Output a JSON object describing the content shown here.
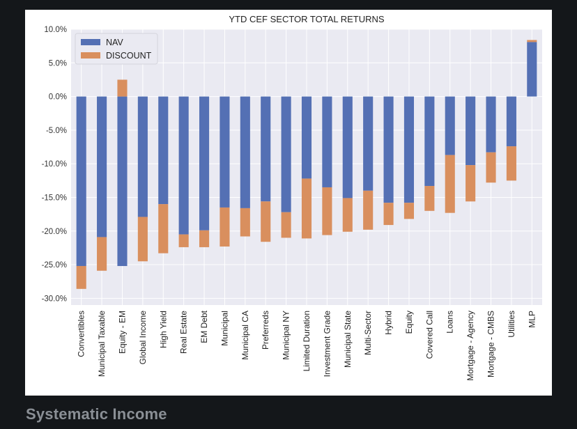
{
  "caption": "Systematic Income",
  "colors": {
    "nav": "#5470b4",
    "discount": "#d98f5e",
    "plot_bg": "#eaeaf2",
    "grid": "#ffffff"
  },
  "chart_data": {
    "type": "bar",
    "stacked": true,
    "title": "YTD CEF SECTOR TOTAL RETURNS",
    "xlabel": "",
    "ylabel": "",
    "ylim": [
      -31.0,
      10.0
    ],
    "yticks": [
      "10.0%",
      "5.0%",
      "0.0%",
      "-5.0%",
      "-10.0%",
      "-15.0%",
      "-20.0%",
      "-25.0%",
      "-30.0%"
    ],
    "ytick_values": [
      10,
      5,
      0,
      -5,
      -10,
      -15,
      -20,
      -25,
      -30
    ],
    "grid": true,
    "legend_position": "top-left",
    "categories": [
      "Convertibles",
      "Municipal Taxable",
      "Equity - EM",
      "Global Income",
      "High Yield",
      "Real Estate",
      "EM Debt",
      "Municipal",
      "Municipal CA",
      "Preferreds",
      "Municipal NY",
      "Limited Duration",
      "Investment Grade",
      "Municipal State",
      "Multi-Sector",
      "Hybrid",
      "Equity",
      "Covered Call",
      "Loans",
      "Mortgage - Agency",
      "Mortgage - CMBS",
      "Utilities",
      "MLP"
    ],
    "series": [
      {
        "name": "NAV",
        "values": [
          -25.2,
          -20.9,
          -25.2,
          -17.9,
          -16.0,
          -20.5,
          -19.9,
          -16.5,
          -16.6,
          -15.6,
          -17.2,
          -12.2,
          -13.5,
          -15.1,
          -14.0,
          -15.8,
          -15.8,
          -13.3,
          -8.7,
          -10.2,
          -8.3,
          -7.4,
          8.1
        ]
      },
      {
        "name": "DISCOUNT",
        "values": [
          -3.4,
          -5.0,
          2.5,
          -6.6,
          -7.3,
          -1.9,
          -2.5,
          -5.8,
          -4.2,
          -6.0,
          -3.8,
          -8.9,
          -7.1,
          -5.0,
          -5.8,
          -3.3,
          -2.4,
          -3.7,
          -8.6,
          -5.4,
          -4.5,
          -5.1,
          0.3
        ]
      }
    ]
  }
}
